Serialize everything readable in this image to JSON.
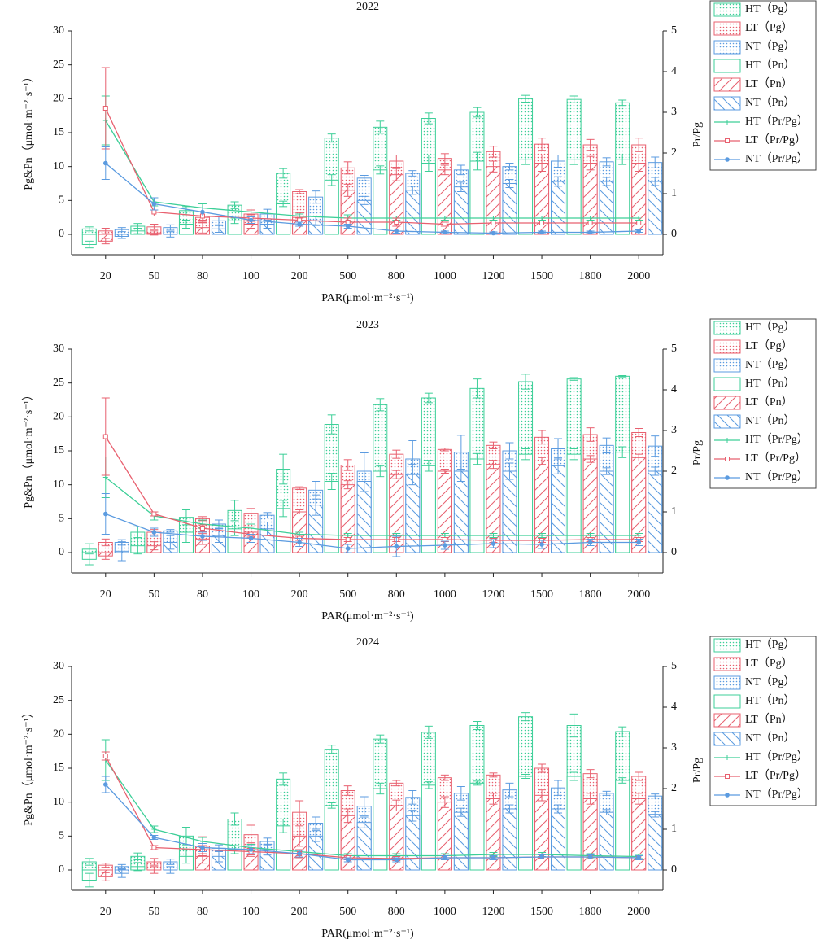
{
  "chart_data": [
    {
      "type": "bar",
      "title": "2022",
      "categories": [
        "20",
        "50",
        "80",
        "100",
        "200",
        "500",
        "800",
        "1000",
        "1200",
        "1500",
        "1800",
        "2000"
      ],
      "xlabel": "PAR(μmol·m⁻²·s⁻¹)",
      "ylabel": "Pg&Pn（μmol·m⁻²·s⁻¹）",
      "y2label": "Pr/Pg",
      "ylim": [
        -3,
        30
      ],
      "yticks": [
        0,
        5,
        10,
        15,
        20,
        25,
        30
      ],
      "y2lim": [
        -0.5,
        5
      ],
      "y2ticks": [
        0,
        1,
        2,
        3,
        4,
        5
      ],
      "series": [
        {
          "name": "HT（Pg）",
          "color": "#3dcf98",
          "pattern": "dots",
          "values": [
            0.8,
            1.2,
            3.5,
            4.3,
            9.0,
            14.2,
            15.8,
            17.1,
            18.0,
            20.0,
            19.9,
            19.4
          ],
          "errors": [
            0.3,
            0.4,
            0.6,
            0.5,
            0.7,
            0.6,
            0.9,
            0.8,
            0.7,
            0.5,
            0.5,
            0.4
          ]
        },
        {
          "name": "LT（Pg）",
          "color": "#e8606f",
          "pattern": "dots",
          "values": [
            0.5,
            1.1,
            2.5,
            3.0,
            6.3,
            9.8,
            10.8,
            11.2,
            12.2,
            13.3,
            13.2,
            13.2
          ],
          "errors": [
            0.4,
            0.4,
            0.8,
            0.6,
            0.3,
            0.9,
            0.9,
            0.7,
            0.8,
            0.9,
            0.8,
            1.0
          ]
        },
        {
          "name": "NT（Pg）",
          "color": "#5b9be0",
          "pattern": "dots",
          "values": [
            0.7,
            1.0,
            2.0,
            3.0,
            5.5,
            8.3,
            9.0,
            9.5,
            10.0,
            10.8,
            10.7,
            10.6
          ],
          "errors": [
            0.3,
            0.4,
            0.6,
            0.7,
            0.9,
            0.4,
            0.4,
            0.7,
            0.5,
            0.9,
            0.6,
            0.8
          ]
        },
        {
          "name": "HT（Pn）",
          "color": "#3dcf98",
          "pattern": "none",
          "values": [
            -1.5,
            0.5,
            1.5,
            2.0,
            4.5,
            8.0,
            9.5,
            10.5,
            10.8,
            11.0,
            11.0,
            11.0
          ],
          "errors": [
            0.5,
            0.4,
            0.6,
            0.4,
            0.4,
            0.8,
            0.6,
            1.2,
            1.3,
            0.7,
            0.7,
            0.7
          ]
        },
        {
          "name": "LT（Pn）",
          "color": "#e8606f",
          "pattern": "slash",
          "values": [
            -1.0,
            0.2,
            1.0,
            1.5,
            2.5,
            6.5,
            8.8,
            9.5,
            10.0,
            10.5,
            10.5,
            10.5
          ],
          "errors": [
            0.4,
            0.3,
            0.8,
            0.6,
            0.7,
            0.9,
            0.9,
            0.7,
            0.8,
            1.2,
            1.0,
            1.2
          ]
        },
        {
          "name": "NT（Pn）",
          "color": "#5b9be0",
          "pattern": "backslash",
          "values": [
            -0.3,
            0.0,
            0.8,
            1.5,
            2.0,
            5.0,
            6.5,
            7.0,
            7.5,
            7.8,
            7.8,
            7.8
          ],
          "errors": [
            0.3,
            0.4,
            0.5,
            0.6,
            0.7,
            0.6,
            0.6,
            0.7,
            0.6,
            0.7,
            0.6,
            0.6
          ]
        },
        {
          "name": "HT（Pr/Pg）",
          "color": "#3dcf98",
          "axis": "y2",
          "marker": "cross",
          "values": [
            2.8,
            0.8,
            0.65,
            0.55,
            0.45,
            0.4,
            0.4,
            0.4,
            0.4,
            0.4,
            0.4,
            0.4
          ],
          "errors": [
            0.6,
            0.1,
            0.1,
            0.1,
            0.05,
            0.08,
            0.05,
            0.05,
            0.05,
            0.05,
            0.05,
            0.05
          ]
        },
        {
          "name": "LT（Pr/Pg）",
          "color": "#e8606f",
          "axis": "y2",
          "marker": "square",
          "values": [
            3.1,
            0.55,
            0.45,
            0.4,
            0.35,
            0.3,
            0.3,
            0.25,
            0.28,
            0.28,
            0.28,
            0.28
          ],
          "errors": [
            1.0,
            0.1,
            0.1,
            0.08,
            0.05,
            0.1,
            0.1,
            0.05,
            0.05,
            0.05,
            0.05,
            0.05
          ]
        },
        {
          "name": "NT（Pr/Pg）",
          "color": "#5b9be0",
          "axis": "y2",
          "marker": "circle",
          "values": [
            1.75,
            0.75,
            0.55,
            0.35,
            0.25,
            0.2,
            0.08,
            0.05,
            0.03,
            0.05,
            0.05,
            0.08
          ],
          "errors": [
            0.4,
            0.15,
            0.1,
            0.08,
            0.05,
            0.05,
            0.05,
            0.03,
            0.03,
            0.03,
            0.03,
            0.03
          ]
        }
      ]
    },
    {
      "type": "bar",
      "title": "2023",
      "categories": [
        "20",
        "50",
        "80",
        "100",
        "200",
        "500",
        "800",
        "1000",
        "1200",
        "1500",
        "1800",
        "2000"
      ],
      "xlabel": "PAR(μmol·m⁻²·s⁻¹)",
      "ylabel": "Pg&Pn（μmol·m⁻²·s⁻¹）",
      "y2label": "Pr/Pg",
      "ylim": [
        -3,
        30
      ],
      "yticks": [
        0,
        5,
        10,
        15,
        20,
        25,
        30
      ],
      "y2lim": [
        -0.5,
        5
      ],
      "y2ticks": [
        0,
        1,
        2,
        3,
        4,
        5
      ],
      "series": [
        {
          "name": "HT（Pg）",
          "color": "#3dcf98",
          "pattern": "dots",
          "values": [
            0.5,
            3.0,
            5.2,
            6.2,
            12.3,
            18.9,
            21.8,
            22.8,
            24.2,
            25.2,
            25.6,
            26.0
          ],
          "errors": [
            0.8,
            0.8,
            1.1,
            1.5,
            2.2,
            1.4,
            0.9,
            0.7,
            1.4,
            1.1,
            0.2,
            0.1
          ]
        },
        {
          "name": "LT（Pg）",
          "color": "#e8606f",
          "pattern": "dots",
          "values": [
            1.5,
            3.0,
            5.0,
            5.8,
            9.5,
            12.9,
            14.5,
            15.2,
            15.8,
            17.0,
            17.4,
            17.7
          ],
          "errors": [
            0.5,
            0.4,
            0.3,
            0.7,
            0.2,
            0.8,
            0.6,
            0.2,
            0.5,
            1.0,
            1.0,
            0.6
          ]
        },
        {
          "name": "NT（Pg）",
          "color": "#5b9be0",
          "pattern": "dots",
          "values": [
            1.5,
            3.2,
            4.2,
            5.5,
            9.2,
            12.0,
            13.8,
            14.8,
            15.0,
            15.3,
            15.8,
            15.7
          ],
          "errors": [
            0.4,
            0.2,
            0.6,
            0.4,
            1.3,
            2.7,
            2.7,
            2.5,
            1.2,
            1.5,
            1.1,
            1.5
          ]
        },
        {
          "name": "HT（Pn）",
          "color": "#3dcf98",
          "pattern": "none",
          "values": [
            -1.0,
            1.0,
            3.0,
            3.5,
            6.5,
            10.5,
            12.0,
            12.8,
            13.8,
            14.5,
            14.5,
            14.8
          ],
          "errors": [
            0.8,
            1.2,
            1.5,
            1.0,
            1.2,
            1.2,
            0.8,
            0.8,
            0.8,
            0.8,
            0.8,
            0.8
          ]
        },
        {
          "name": "LT（Pn）",
          "color": "#e8606f",
          "pattern": "slash",
          "values": [
            -0.5,
            1.0,
            2.0,
            3.0,
            6.0,
            10.0,
            11.5,
            12.0,
            13.0,
            13.5,
            13.8,
            14.0
          ],
          "errors": [
            0.5,
            0.6,
            0.8,
            0.8,
            0.3,
            0.6,
            0.6,
            0.3,
            0.6,
            0.5,
            0.5,
            0.5
          ]
        },
        {
          "name": "NT（Pn）",
          "color": "#5b9be0",
          "pattern": "backslash",
          "values": [
            0.2,
            1.5,
            2.5,
            3.5,
            7.0,
            10.5,
            11.5,
            12.0,
            12.0,
            12.8,
            12.0,
            12.0
          ],
          "errors": [
            1.4,
            1.0,
            1.0,
            1.0,
            1.5,
            1.5,
            1.5,
            1.5,
            1.2,
            1.2,
            0.5,
            0.6
          ]
        },
        {
          "name": "HT（Pr/Pg）",
          "color": "#3dcf98",
          "axis": "y2",
          "marker": "cross",
          "values": [
            1.85,
            0.9,
            0.7,
            0.6,
            0.45,
            0.42,
            0.42,
            0.42,
            0.42,
            0.42,
            0.42,
            0.42
          ],
          "errors": [
            0.5,
            0.1,
            0.1,
            0.1,
            0.05,
            0.05,
            0.05,
            0.05,
            0.05,
            0.05,
            0.05,
            0.05
          ]
        },
        {
          "name": "LT（Pr/Pg）",
          "color": "#e8606f",
          "axis": "y2",
          "marker": "square",
          "values": [
            2.85,
            0.95,
            0.6,
            0.45,
            0.35,
            0.32,
            0.32,
            0.32,
            0.3,
            0.3,
            0.32,
            0.32
          ],
          "errors": [
            0.95,
            0.05,
            0.08,
            0.05,
            0.05,
            0.05,
            0.05,
            0.05,
            0.05,
            0.05,
            0.05,
            0.05
          ]
        },
        {
          "name": "NT（Pr/Pg）",
          "color": "#5b9be0",
          "axis": "y2",
          "marker": "circle",
          "values": [
            0.95,
            0.5,
            0.4,
            0.35,
            0.25,
            0.1,
            0.15,
            0.18,
            0.22,
            0.2,
            0.25,
            0.25
          ],
          "errors": [
            0.5,
            0.1,
            0.1,
            0.1,
            0.1,
            0.1,
            0.25,
            0.1,
            0.1,
            0.1,
            0.08,
            0.08
          ]
        }
      ]
    },
    {
      "type": "bar",
      "title": "2024",
      "categories": [
        "20",
        "50",
        "80",
        "100",
        "200",
        "500",
        "800",
        "1000",
        "1200",
        "1500",
        "1800",
        "2000"
      ],
      "xlabel": "PAR(μmol·m⁻²·s⁻¹)",
      "ylabel": "Pg&Pn（μmol·m⁻²·s⁻¹）",
      "y2label": "Pr/Pg",
      "ylim": [
        -3,
        30
      ],
      "yticks": [
        0,
        5,
        10,
        15,
        20,
        25,
        30
      ],
      "y2lim": [
        -0.5,
        5
      ],
      "y2ticks": [
        0,
        1,
        2,
        3,
        4,
        5
      ],
      "series": [
        {
          "name": "HT（Pg）",
          "color": "#3dcf98",
          "pattern": "dots",
          "values": [
            1.2,
            2.0,
            5.0,
            7.5,
            13.4,
            17.8,
            19.3,
            20.3,
            21.3,
            22.6,
            21.3,
            20.4
          ],
          "errors": [
            0.5,
            0.5,
            1.3,
            0.9,
            0.9,
            0.6,
            0.6,
            0.9,
            0.6,
            0.6,
            1.7,
            0.7
          ]
        },
        {
          "name": "LT（Pg）",
          "color": "#e8606f",
          "pattern": "dots",
          "values": [
            0.7,
            1.2,
            3.5,
            5.2,
            8.5,
            11.7,
            12.8,
            13.6,
            14.0,
            15.0,
            14.2,
            13.8
          ],
          "errors": [
            0.3,
            0.5,
            1.4,
            1.4,
            1.7,
            0.7,
            0.4,
            0.4,
            0.3,
            0.6,
            0.6,
            0.6
          ]
        },
        {
          "name": "NT（Pg）",
          "color": "#5b9be0",
          "pattern": "dots",
          "values": [
            0.5,
            1.2,
            3.2,
            4.2,
            6.9,
            9.4,
            10.7,
            11.3,
            11.8,
            12.1,
            11.3,
            10.9
          ],
          "errors": [
            0.3,
            0.4,
            0.5,
            0.5,
            0.9,
            1.4,
            1.0,
            1.0,
            1.0,
            1.1,
            0.3,
            0.3
          ]
        },
        {
          "name": "HT（Pn）",
          "color": "#3dcf98",
          "pattern": "none",
          "values": [
            -1.5,
            0.5,
            2.0,
            3.0,
            6.5,
            9.5,
            12.0,
            12.5,
            12.8,
            13.8,
            13.8,
            13.2
          ],
          "errors": [
            1.0,
            0.6,
            1.0,
            0.6,
            1.0,
            0.4,
            0.8,
            0.5,
            0.3,
            0.3,
            0.6,
            0.4
          ]
        },
        {
          "name": "LT（Pn）",
          "color": "#e8606f",
          "pattern": "slash",
          "values": [
            -1.0,
            0.0,
            2.0,
            3.0,
            5.0,
            8.0,
            9.5,
            10.0,
            10.5,
            11.0,
            10.5,
            10.5
          ],
          "errors": [
            0.6,
            0.5,
            1.0,
            1.0,
            1.5,
            1.0,
            0.8,
            0.8,
            0.8,
            0.8,
            0.8,
            0.8
          ]
        },
        {
          "name": "NT（Pn）",
          "color": "#5b9be0",
          "pattern": "backslash",
          "values": [
            -0.5,
            0.0,
            2.0,
            3.0,
            5.0,
            7.0,
            8.0,
            8.5,
            9.0,
            9.0,
            8.5,
            8.2
          ],
          "errors": [
            0.6,
            0.5,
            0.8,
            0.8,
            0.8,
            0.8,
            0.8,
            0.6,
            0.6,
            0.6,
            0.4,
            0.4
          ]
        },
        {
          "name": "HT（Pr/Pg）",
          "color": "#3dcf98",
          "axis": "y2",
          "marker": "cross",
          "values": [
            2.7,
            1.0,
            0.7,
            0.55,
            0.45,
            0.35,
            0.35,
            0.35,
            0.38,
            0.38,
            0.35,
            0.33
          ],
          "errors": [
            0.5,
            0.08,
            0.1,
            0.08,
            0.05,
            0.05,
            0.05,
            0.05,
            0.05,
            0.05,
            0.05,
            0.05
          ]
        },
        {
          "name": "LT（Pr/Pg）",
          "color": "#e8606f",
          "axis": "y2",
          "marker": "square",
          "values": [
            2.8,
            0.55,
            0.5,
            0.45,
            0.4,
            0.3,
            0.28,
            0.3,
            0.3,
            0.32,
            0.32,
            0.3
          ],
          "errors": [
            0.1,
            0.05,
            0.1,
            0.08,
            0.1,
            0.05,
            0.05,
            0.05,
            0.05,
            0.05,
            0.05,
            0.05
          ]
        },
        {
          "name": "NT（Pr/Pg）",
          "color": "#5b9be0",
          "axis": "y2",
          "marker": "circle",
          "values": [
            2.1,
            0.8,
            0.55,
            0.5,
            0.4,
            0.25,
            0.25,
            0.3,
            0.3,
            0.32,
            0.32,
            0.3
          ],
          "errors": [
            0.2,
            0.05,
            0.1,
            0.1,
            0.08,
            0.05,
            0.05,
            0.05,
            0.05,
            0.05,
            0.05,
            0.05
          ]
        }
      ]
    }
  ]
}
